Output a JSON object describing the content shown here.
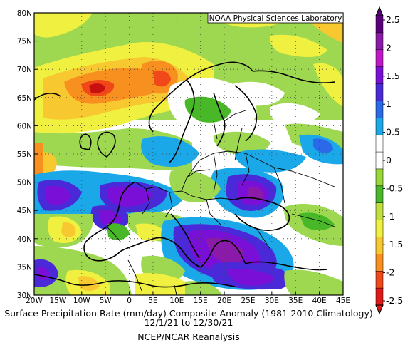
{
  "credit": "NOAA Physical Sciences Laboratory",
  "caption": {
    "line1": "Surface Precipitation Rate (mm/day) Composite Anomaly (1981-2010 Climatology)",
    "line2": "12/1/21 to 12/30/21",
    "line3": "NCEP/NCAR Reanalysis"
  },
  "map": {
    "lat_labels": [
      "30N",
      "35N",
      "40N",
      "45N",
      "50N",
      "55N",
      "60N",
      "65N",
      "70N",
      "75N",
      "80N"
    ],
    "lat_values": [
      30,
      35,
      40,
      45,
      50,
      55,
      60,
      65,
      70,
      75,
      80
    ],
    "lon_labels": [
      "20W",
      "15W",
      "10W",
      "5W",
      "0",
      "5E",
      "10E",
      "15E",
      "20E",
      "25E",
      "30E",
      "35E",
      "40E",
      "45E"
    ],
    "lon_values": [
      -20,
      -15,
      -10,
      -5,
      0,
      5,
      10,
      15,
      20,
      25,
      30,
      35,
      40,
      45
    ],
    "lon_range": [
      -20,
      45
    ],
    "lat_range": [
      30,
      80
    ]
  },
  "colorbar": {
    "labels": [
      "2.5",
      "2",
      "1.5",
      "1",
      "0.5",
      "0",
      "-0.5",
      "-1",
      "-1.5",
      "-2",
      "-2.5"
    ],
    "colors": [
      "#5a007a",
      "#8c1aa8",
      "#c018c8",
      "#7a10d8",
      "#4a2ad8",
      "#2a6ae8",
      "#1aa8e8",
      "#ffffff",
      "#ffffff",
      "#98d838",
      "#48b828",
      "#c0e040",
      "#f0f040",
      "#f8c830",
      "#f89020",
      "#f04818",
      "#e01818"
    ]
  }
}
